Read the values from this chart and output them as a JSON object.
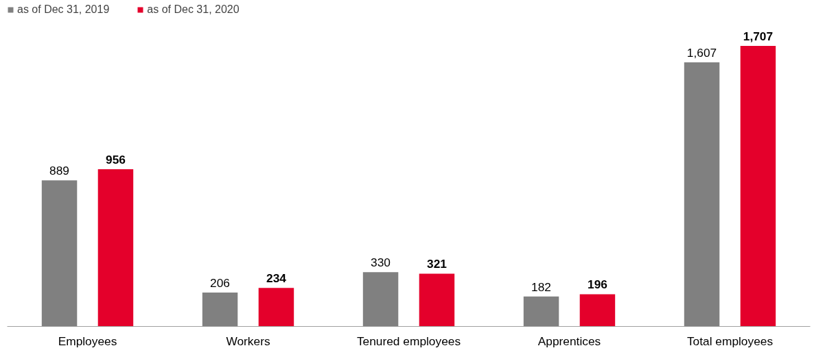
{
  "chart_data": {
    "type": "bar",
    "categories": [
      "Employees",
      "Workers",
      "Tenured employees",
      "Apprentices",
      "Total employees"
    ],
    "series": [
      {
        "name": "as of Dec 31, 2019",
        "color": "#808080",
        "values": [
          889,
          206,
          330,
          182,
          1607
        ],
        "value_labels": [
          "889",
          "206",
          "330",
          "182",
          "1,607"
        ]
      },
      {
        "name": "as of Dec 31, 2020",
        "color": "#e4002b",
        "values": [
          956,
          234,
          321,
          196,
          1707
        ],
        "value_labels": [
          "956",
          "234",
          "321",
          "196",
          "1,707"
        ]
      }
    ],
    "legend": "top left",
    "grid": false
  }
}
